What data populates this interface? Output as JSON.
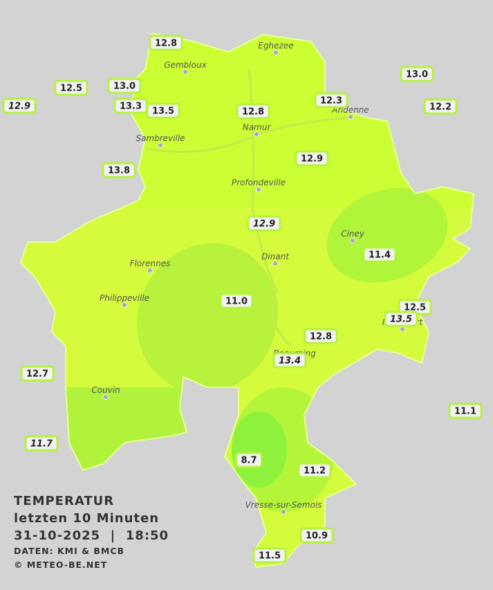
{
  "cities": [
    "Eghezee",
    "Gembloux",
    "Andenne",
    "Namur",
    "Sambreville",
    "Profondeville",
    "Ciney",
    "Dinant",
    "Florennes",
    "Philippeville",
    "Rochefort",
    "Beauraing",
    "Couvin",
    "Vresse-sur-Semois"
  ],
  "stations": [
    {
      "value": "12.8",
      "italic": false
    },
    {
      "value": "12.5",
      "italic": false
    },
    {
      "value": "13.0",
      "italic": false
    },
    {
      "value": "12.9",
      "italic": true
    },
    {
      "value": "13.3",
      "italic": false
    },
    {
      "value": "13.5",
      "italic": false
    },
    {
      "value": "12.8",
      "italic": false
    },
    {
      "value": "12.3",
      "italic": false
    },
    {
      "value": "13.0",
      "italic": false
    },
    {
      "value": "12.2",
      "italic": false
    },
    {
      "value": "13.8",
      "italic": false
    },
    {
      "value": "12.9",
      "italic": false
    },
    {
      "value": "12.9",
      "italic": true
    },
    {
      "value": "11.4",
      "italic": false
    },
    {
      "value": "11.0",
      "italic": false
    },
    {
      "value": "12.5",
      "italic": false
    },
    {
      "value": "13.5",
      "italic": true
    },
    {
      "value": "12.8",
      "italic": false
    },
    {
      "value": "13.4",
      "italic": true
    },
    {
      "value": "12.7",
      "italic": false
    },
    {
      "value": "11.1",
      "italic": false
    },
    {
      "value": "11.7",
      "italic": true
    },
    {
      "value": "8.7",
      "italic": false
    },
    {
      "value": "11.2",
      "italic": false
    },
    {
      "value": "10.9",
      "italic": false
    },
    {
      "value": "11.5",
      "italic": false
    }
  ],
  "legend": {
    "title": "TEMPERATUR",
    "subtitle": "letzten 10 Minuten",
    "datetime": "31-10-2025  |  18:50",
    "source": "DATEN: KMI & BMCB",
    "credit": "© METEO-BE.NET"
  }
}
